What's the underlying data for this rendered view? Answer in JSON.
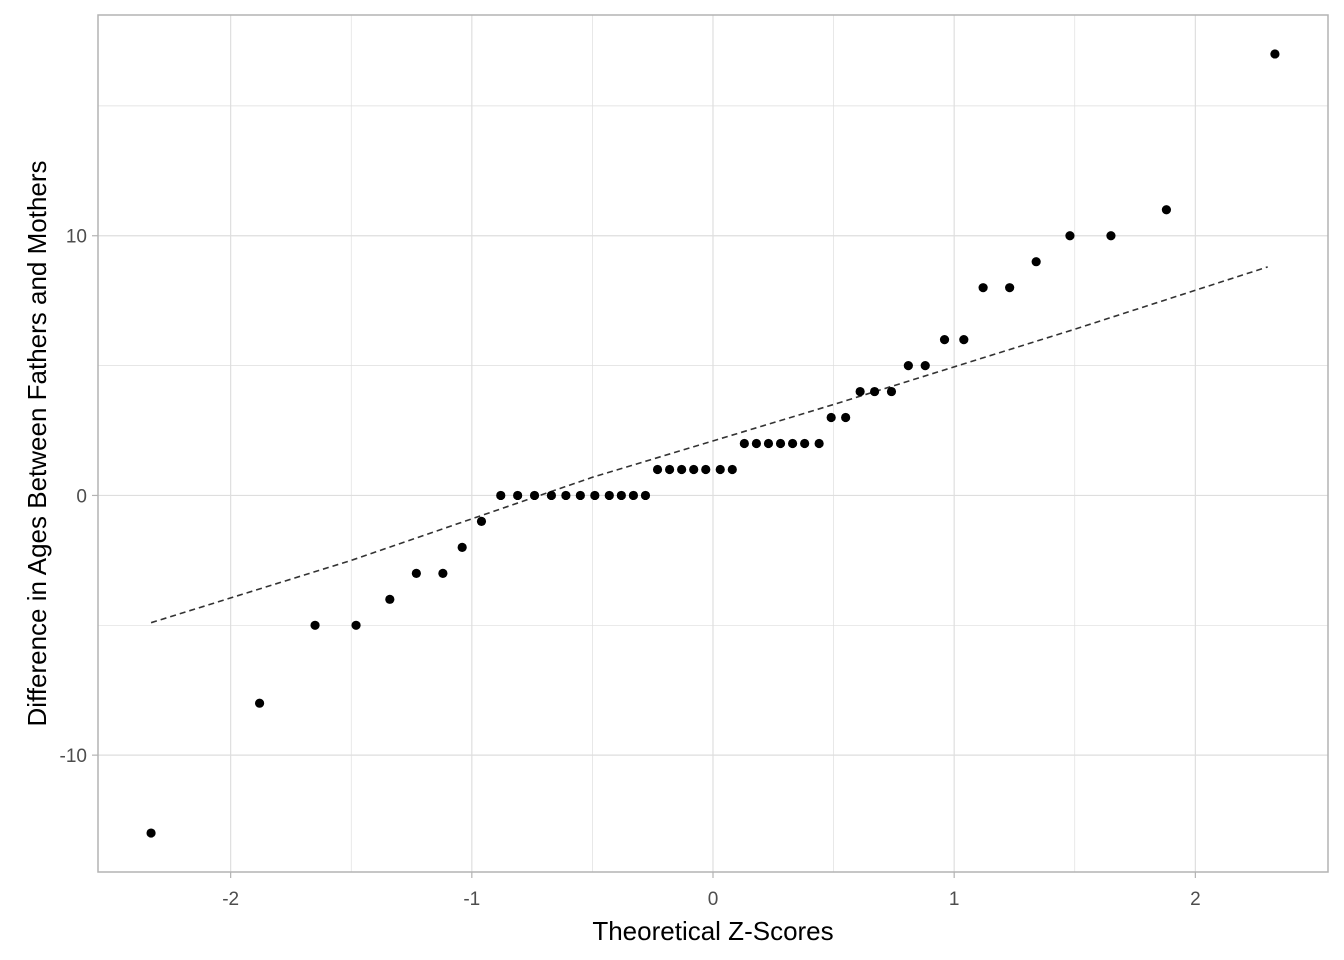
{
  "chart_data": {
    "type": "scatter",
    "title": "",
    "xlabel": "Theoretical Z-Scores",
    "ylabel": "Difference in Ages Between Fathers and Mothers",
    "xlim": [
      -2.55,
      2.55
    ],
    "ylim": [
      -14.5,
      18.5
    ],
    "x_ticks": [
      -2,
      -1,
      0,
      1,
      2
    ],
    "x_tick_labels": [
      "-2",
      "-1",
      "0",
      "1",
      "2"
    ],
    "y_ticks": [
      -10,
      0,
      10
    ],
    "y_tick_labels": [
      "-10",
      "0",
      "10"
    ],
    "grid": true,
    "legend": "none",
    "point_color": "#000000",
    "reference_line": {
      "style": "dashed",
      "color": "#333333",
      "x": [
        -2.33,
        -1.5,
        -0.5,
        0.5,
        1.5,
        2.3
      ],
      "y": [
        -4.9,
        -2.5,
        0.7,
        3.5,
        6.4,
        8.8
      ]
    },
    "series": [
      {
        "x": [
          -2.33,
          -1.88,
          -1.65,
          -1.48,
          -1.34,
          -1.23,
          -1.12,
          -1.04,
          -0.96,
          -0.88,
          -0.81,
          -0.74,
          -0.67,
          -0.61,
          -0.55,
          -0.49,
          -0.43,
          -0.38,
          -0.33,
          -0.28,
          -0.23,
          -0.18,
          -0.13,
          -0.08,
          -0.03,
          0.03,
          0.08,
          0.13,
          0.18,
          0.23,
          0.28,
          0.33,
          0.38,
          0.44,
          0.49,
          0.55,
          0.61,
          0.67,
          0.74,
          0.81,
          0.88,
          0.96,
          1.04,
          1.12,
          1.23,
          1.34,
          1.48,
          1.65,
          1.88,
          2.33
        ],
        "y": [
          -13,
          -8,
          -5,
          -5,
          -4,
          -3,
          -3,
          -2,
          -1,
          0,
          0,
          0,
          0,
          0,
          0,
          0,
          0,
          0,
          0,
          0,
          1,
          1,
          1,
          1,
          1,
          1,
          1,
          2,
          2,
          2,
          2,
          2,
          2,
          2,
          3,
          3,
          4,
          4,
          4,
          5,
          5,
          6,
          6,
          8,
          8,
          9,
          10,
          10,
          11,
          17
        ]
      }
    ]
  }
}
